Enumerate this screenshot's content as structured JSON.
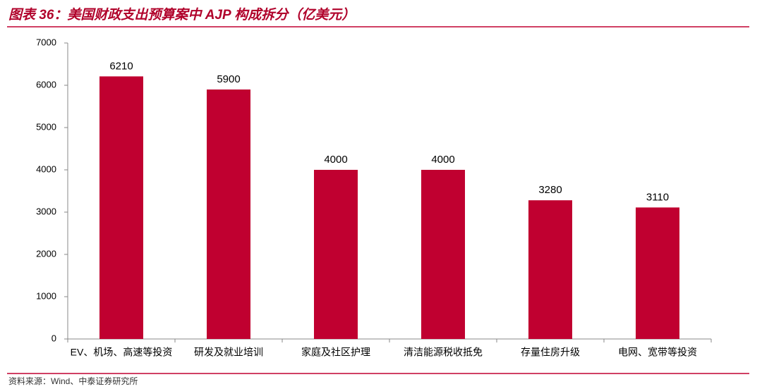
{
  "chart_data": {
    "type": "bar",
    "title": "图表 36：美国财政支出预算案中 AJP 构成拆分（亿美元）",
    "source": "资料来源：Wind、中泰证券研究所",
    "categories": [
      "EV、机场、高速等投资",
      "研发及就业培训",
      "家庭及社区护理",
      "清洁能源税收抵免",
      "存量住房升级",
      "电网、宽带等投资"
    ],
    "values": [
      6210,
      5900,
      4000,
      4000,
      3280,
      3110
    ],
    "color": "#c00030",
    "ylim": [
      0,
      7000
    ],
    "yticks": [
      0,
      1000,
      2000,
      3000,
      4000,
      5000,
      6000,
      7000
    ],
    "grid": false
  }
}
